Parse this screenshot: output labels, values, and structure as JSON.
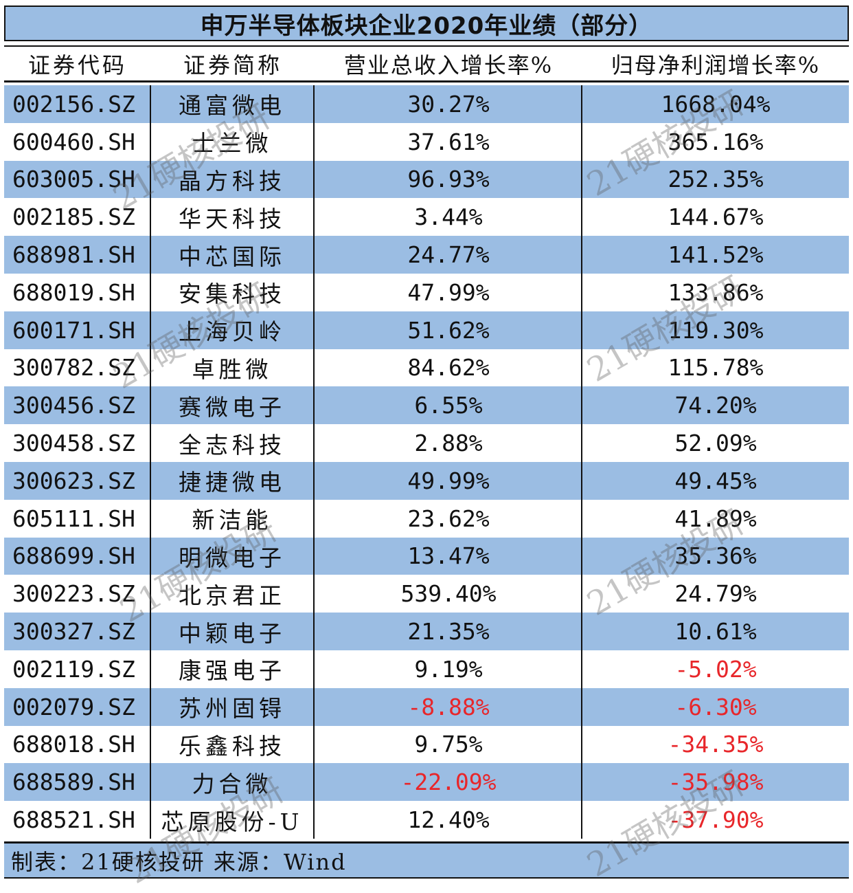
{
  "title": "申万半导体板块企业2020年业绩（部分）",
  "headers": [
    "证券代码",
    "证券简称",
    "营业总收入增长率%",
    "归母净利润增长率%"
  ],
  "rows": [
    {
      "code": "002156.SZ",
      "name": "通富微电",
      "revenue_growth": "30.27%",
      "net_profit_growth": "1668.04%"
    },
    {
      "code": "600460.SH",
      "name": "士兰微",
      "revenue_growth": "37.61%",
      "net_profit_growth": "365.16%"
    },
    {
      "code": "603005.SH",
      "name": "晶方科技",
      "revenue_growth": "96.93%",
      "net_profit_growth": "252.35%"
    },
    {
      "code": "002185.SZ",
      "name": "华天科技",
      "revenue_growth": "3.44%",
      "net_profit_growth": "144.67%"
    },
    {
      "code": "688981.SH",
      "name": "中芯国际",
      "revenue_growth": "24.77%",
      "net_profit_growth": "141.52%"
    },
    {
      "code": "688019.SH",
      "name": "安集科技",
      "revenue_growth": "47.99%",
      "net_profit_growth": "133.86%"
    },
    {
      "code": "600171.SH",
      "name": "上海贝岭",
      "revenue_growth": "51.62%",
      "net_profit_growth": "119.30%"
    },
    {
      "code": "300782.SZ",
      "name": "卓胜微",
      "revenue_growth": "84.62%",
      "net_profit_growth": "115.78%"
    },
    {
      "code": "300456.SZ",
      "name": "赛微电子",
      "revenue_growth": "6.55%",
      "net_profit_growth": "74.20%"
    },
    {
      "code": "300458.SZ",
      "name": "全志科技",
      "revenue_growth": "2.88%",
      "net_profit_growth": "52.09%"
    },
    {
      "code": "300623.SZ",
      "name": "捷捷微电",
      "revenue_growth": "49.99%",
      "net_profit_growth": "49.45%"
    },
    {
      "code": "605111.SH",
      "name": "新洁能",
      "revenue_growth": "23.62%",
      "net_profit_growth": "41.89%"
    },
    {
      "code": "688699.SH",
      "name": "明微电子",
      "revenue_growth": "13.47%",
      "net_profit_growth": "35.36%"
    },
    {
      "code": "300223.SZ",
      "name": "北京君正",
      "revenue_growth": "539.40%",
      "net_profit_growth": "24.79%"
    },
    {
      "code": "300327.SZ",
      "name": "中颖电子",
      "revenue_growth": "21.35%",
      "net_profit_growth": "10.61%"
    },
    {
      "code": "002119.SZ",
      "name": "康强电子",
      "revenue_growth": "9.19%",
      "net_profit_growth": "-5.02%"
    },
    {
      "code": "002079.SZ",
      "name": "苏州固锝",
      "revenue_growth": "-8.88%",
      "net_profit_growth": "-6.30%"
    },
    {
      "code": "688018.SH",
      "name": "乐鑫科技",
      "revenue_growth": "9.75%",
      "net_profit_growth": "-34.35%"
    },
    {
      "code": "688589.SH",
      "name": "力合微",
      "revenue_growth": "-22.09%",
      "net_profit_growth": "-35.98%"
    },
    {
      "code": "688521.SH",
      "name": "芯原股份-U",
      "revenue_growth": "12.40%",
      "net_profit_growth": "-37.90%"
    }
  ],
  "footer": "制表：21硬核投研 来源：Wind",
  "watermark": "21硬核投研",
  "colors": {
    "band": "#9bbde3",
    "negative": "#e8262a",
    "text": "#111111"
  }
}
